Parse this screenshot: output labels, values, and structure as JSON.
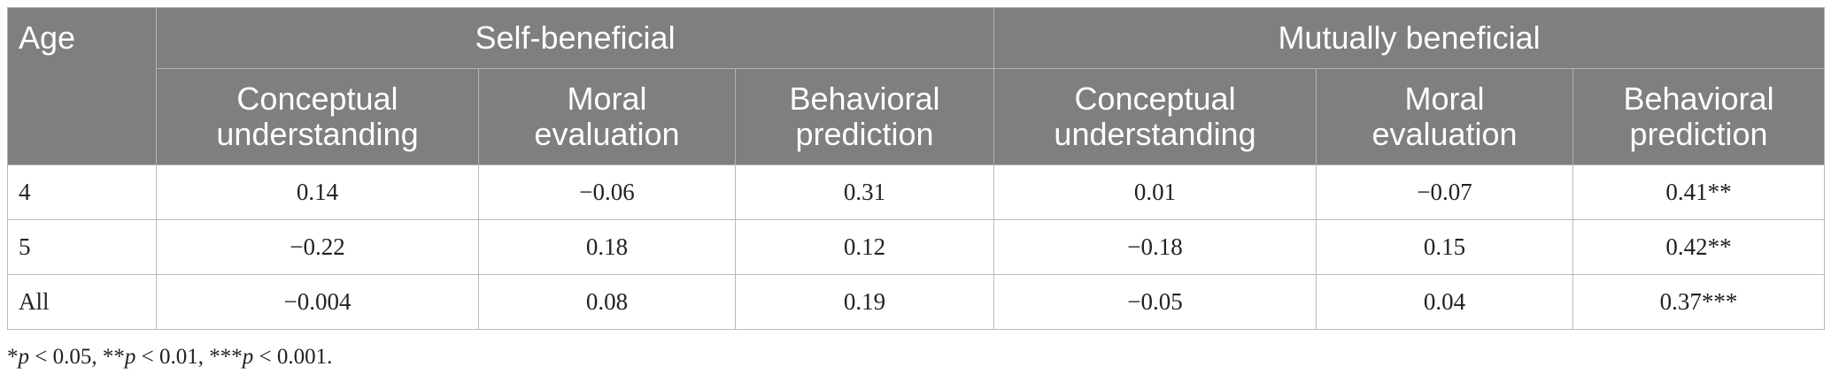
{
  "table": {
    "age_header": "Age",
    "groups": [
      "Self-beneficial",
      "Mutually beneficial"
    ],
    "subheaders": [
      [
        "Conceptual",
        "understanding"
      ],
      [
        "Moral",
        "evaluation"
      ],
      [
        "Behavioral",
        "prediction"
      ],
      [
        "Conceptual",
        "understanding"
      ],
      [
        "Moral",
        "evaluation"
      ],
      [
        "Behavioral",
        "prediction"
      ]
    ],
    "rows": [
      {
        "age": "4",
        "values": [
          "0.14",
          "−0.06",
          "0.31",
          "0.01",
          "−0.07",
          "0.41**"
        ]
      },
      {
        "age": "5",
        "values": [
          "−0.22",
          "0.18",
          "0.12",
          "−0.18",
          "0.15",
          "0.42**"
        ]
      },
      {
        "age": "All",
        "values": [
          "−0.004",
          "0.08",
          "0.19",
          "−0.05",
          "0.04",
          "0.37***"
        ]
      }
    ]
  },
  "footnote": {
    "s1": "*",
    "p1": "p",
    "t1": " < 0.05, **",
    "p2": "p",
    "t2": " < 0.01, ***",
    "p3": "p",
    "t3": " < 0.001."
  }
}
